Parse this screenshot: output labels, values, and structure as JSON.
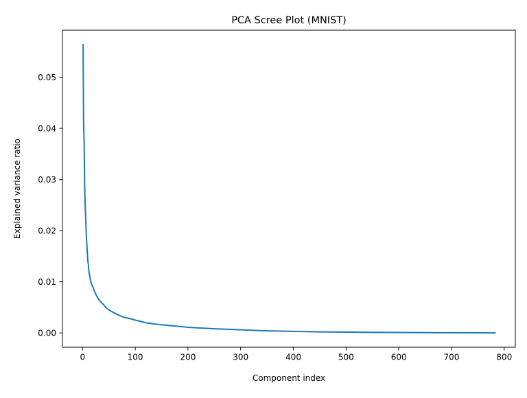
{
  "chart_data": {
    "type": "line",
    "title": "PCA Scree Plot (MNIST)",
    "xlabel": "Component index",
    "ylabel": "Explained variance ratio",
    "xlim": [
      -38.15,
      821.15
    ],
    "ylim": [
      -0.0028,
      0.0592
    ],
    "xticks": [
      0,
      100,
      200,
      300,
      400,
      500,
      600,
      700,
      800
    ],
    "yticks": [
      0.0,
      0.01,
      0.02,
      0.03,
      0.04,
      0.05
    ],
    "xtick_labels": [
      "0",
      "100",
      "200",
      "300",
      "400",
      "500",
      "600",
      "700",
      "800"
    ],
    "ytick_labels": [
      "0.00",
      "0.01",
      "0.02",
      "0.03",
      "0.04",
      "0.05"
    ],
    "grid": false,
    "legend": "none",
    "series": [
      {
        "color": "#1f77b4",
        "points": [
          [
            1,
            0.0565
          ],
          [
            2,
            0.0409
          ],
          [
            3,
            0.0374
          ],
          [
            4,
            0.0289
          ],
          [
            5,
            0.0251
          ],
          [
            6,
            0.0225
          ],
          [
            7,
            0.0195
          ],
          [
            8,
            0.0175
          ],
          [
            9,
            0.0158
          ],
          [
            10,
            0.0141
          ],
          [
            11,
            0.0134
          ],
          [
            12,
            0.0121
          ],
          [
            13,
            0.0114
          ],
          [
            14,
            0.011
          ],
          [
            15,
            0.0103
          ],
          [
            16,
            0.0099
          ],
          [
            18,
            0.0093
          ],
          [
            20,
            0.0089
          ],
          [
            22,
            0.0083
          ],
          [
            25,
            0.0076
          ],
          [
            28,
            0.007
          ],
          [
            31,
            0.0065
          ],
          [
            35,
            0.006
          ],
          [
            40,
            0.0055
          ],
          [
            45,
            0.0049
          ],
          [
            50,
            0.0045
          ],
          [
            60,
            0.0039
          ],
          [
            70,
            0.0034
          ],
          [
            80,
            0.003
          ],
          [
            90,
            0.0028
          ],
          [
            100,
            0.0025
          ],
          [
            120,
            0.002
          ],
          [
            140,
            0.0017
          ],
          [
            160,
            0.0015
          ],
          [
            180,
            0.0013
          ],
          [
            200,
            0.0011
          ],
          [
            250,
            0.0008
          ],
          [
            300,
            0.0006
          ],
          [
            350,
            0.0004
          ],
          [
            400,
            0.0003
          ],
          [
            450,
            0.0002
          ],
          [
            500,
            0.00015
          ],
          [
            550,
            0.0001
          ],
          [
            600,
            8e-05
          ],
          [
            650,
            5e-05
          ],
          [
            700,
            3e-05
          ],
          [
            750,
            1e-05
          ],
          [
            784,
            0.0
          ]
        ]
      }
    ]
  }
}
